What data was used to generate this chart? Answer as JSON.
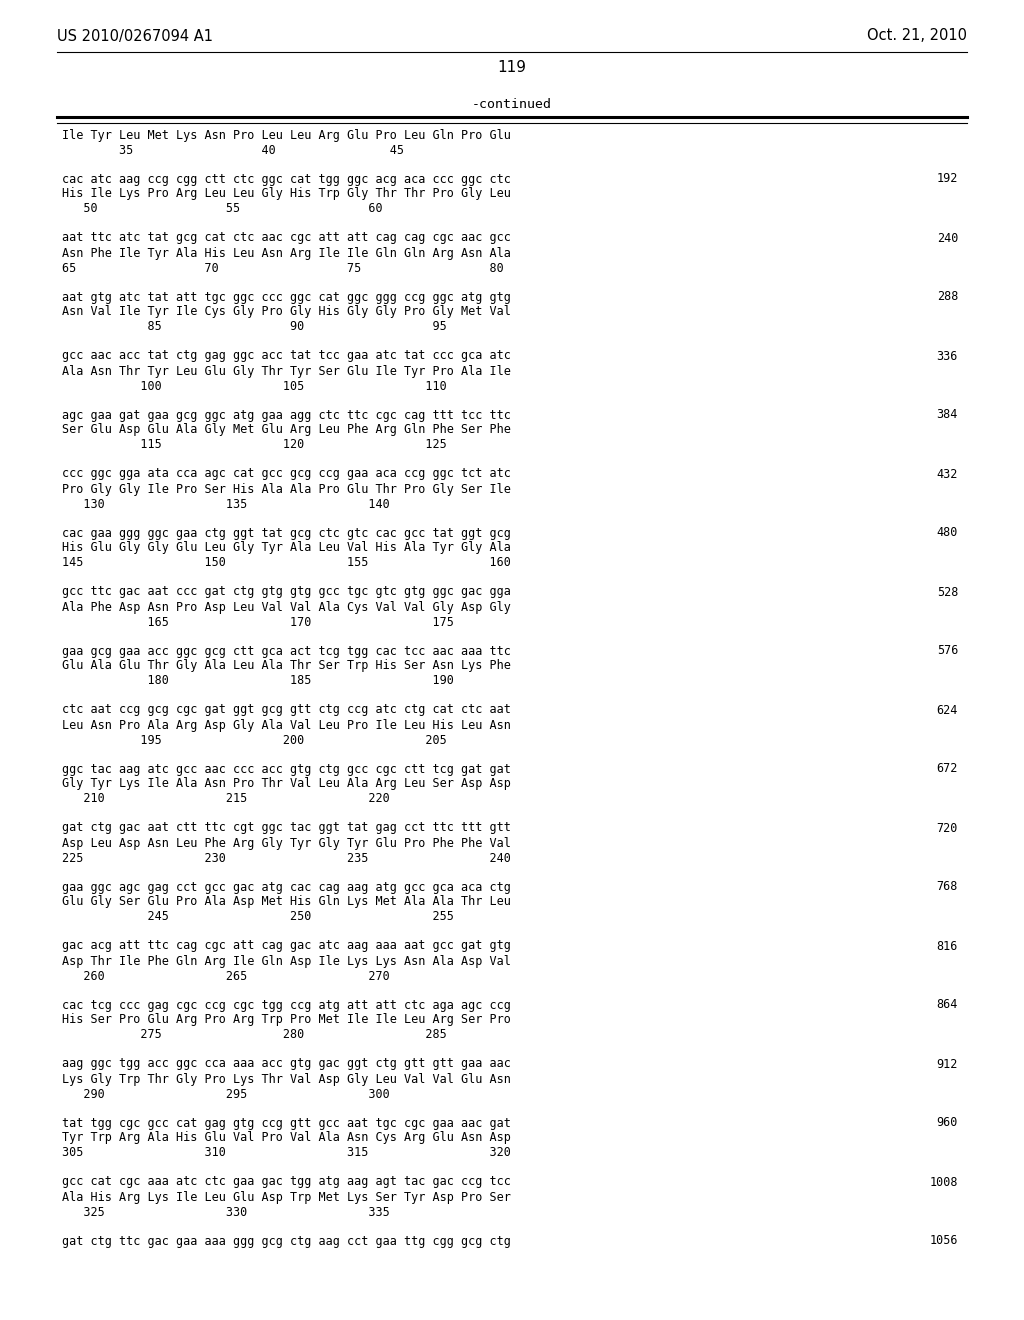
{
  "patent_number": "US 2010/0267094 A1",
  "date": "Oct. 21, 2010",
  "page_number": "119",
  "continued_label": "-continued",
  "background_color": "#ffffff",
  "text_color": "#000000",
  "sequence_blocks": [
    {
      "protein_only": "Ile Tyr Leu Met Lys Asn Pro Leu Leu Arg Glu Pro Leu Gln Pro Glu",
      "num_line": "        35                  40                45",
      "dna_line": "",
      "aa_line": "",
      "number": ""
    },
    {
      "protein_only": "",
      "dna_line": "cac atc aag ccg cgg ctt ctc ggc cat tgg ggc acg aca ccc ggc ctc",
      "aa_line": "His Ile Lys Pro Arg Leu Leu Gly His Trp Gly Thr Thr Pro Gly Leu",
      "num_line": "   50                  55                  60",
      "number": "192"
    },
    {
      "protein_only": "",
      "dna_line": "aat ttc atc tat gcg cat ctc aac cgc att att cag cag cgc aac gcc",
      "aa_line": "Asn Phe Ile Tyr Ala His Leu Asn Arg Ile Ile Gln Gln Arg Asn Ala",
      "num_line": "65                  70                  75                  80",
      "number": "240"
    },
    {
      "protein_only": "",
      "dna_line": "aat gtg atc tat att tgc ggc ccc ggc cat ggc ggg ccg ggc atg gtg",
      "aa_line": "Asn Val Ile Tyr Ile Cys Gly Pro Gly His Gly Gly Pro Gly Met Val",
      "num_line": "            85                  90                  95",
      "number": "288"
    },
    {
      "protein_only": "",
      "dna_line": "gcc aac acc tat ctg gag ggc acc tat tcc gaa atc tat ccc gca atc",
      "aa_line": "Ala Asn Thr Tyr Leu Glu Gly Thr Tyr Ser Glu Ile Tyr Pro Ala Ile",
      "num_line": "           100                 105                 110",
      "number": "336"
    },
    {
      "protein_only": "",
      "dna_line": "agc gaa gat gaa gcg ggc atg gaa agg ctc ttc cgc cag ttt tcc ttc",
      "aa_line": "Ser Glu Asp Glu Ala Gly Met Glu Arg Leu Phe Arg Gln Phe Ser Phe",
      "num_line": "           115                 120                 125",
      "number": "384"
    },
    {
      "protein_only": "",
      "dna_line": "ccc ggc gga ata cca agc cat gcc gcg ccg gaa aca ccg ggc tct atc",
      "aa_line": "Pro Gly Gly Ile Pro Ser His Ala Ala Pro Glu Thr Pro Gly Ser Ile",
      "num_line": "   130                 135                 140",
      "number": "432"
    },
    {
      "protein_only": "",
      "dna_line": "cac gaa ggg ggc gaa ctg ggt tat gcg ctc gtc cac gcc tat ggt gcg",
      "aa_line": "His Glu Gly Gly Glu Leu Gly Tyr Ala Leu Val His Ala Tyr Gly Ala",
      "num_line": "145                 150                 155                 160",
      "number": "480"
    },
    {
      "protein_only": "",
      "dna_line": "gcc ttc gac aat ccc gat ctg gtg gtg gcc tgc gtc gtg ggc gac gga",
      "aa_line": "Ala Phe Asp Asn Pro Asp Leu Val Val Ala Cys Val Val Gly Asp Gly",
      "num_line": "            165                 170                 175",
      "number": "528"
    },
    {
      "protein_only": "",
      "dna_line": "gaa gcg gaa acc ggc gcg ctt gca act tcg tgg cac tcc aac aaa ttc",
      "aa_line": "Glu Ala Glu Thr Gly Ala Leu Ala Thr Ser Trp His Ser Asn Lys Phe",
      "num_line": "            180                 185                 190",
      "number": "576"
    },
    {
      "protein_only": "",
      "dna_line": "ctc aat ccg gcg cgc gat ggt gcg gtt ctg ccg atc ctg cat ctc aat",
      "aa_line": "Leu Asn Pro Ala Arg Asp Gly Ala Val Leu Pro Ile Leu His Leu Asn",
      "num_line": "           195                 200                 205",
      "number": "624"
    },
    {
      "protein_only": "",
      "dna_line": "ggc tac aag atc gcc aac ccc acc gtg ctg gcc cgc ctt tcg gat gat",
      "aa_line": "Gly Tyr Lys Ile Ala Asn Pro Thr Val Leu Ala Arg Leu Ser Asp Asp",
      "num_line": "   210                 215                 220",
      "number": "672"
    },
    {
      "protein_only": "",
      "dna_line": "gat ctg gac aat ctt ttc cgt ggc tac ggt tat gag cct ttc ttt gtt",
      "aa_line": "Asp Leu Asp Asn Leu Phe Arg Gly Tyr Gly Tyr Glu Pro Phe Phe Val",
      "num_line": "225                 230                 235                 240",
      "number": "720"
    },
    {
      "protein_only": "",
      "dna_line": "gaa ggc agc gag cct gcc gac atg cac cag aag atg gcc gca aca ctg",
      "aa_line": "Glu Gly Ser Glu Pro Ala Asp Met His Gln Lys Met Ala Ala Thr Leu",
      "num_line": "            245                 250                 255",
      "number": "768"
    },
    {
      "protein_only": "",
      "dna_line": "gac acg att ttc cag cgc att cag gac atc aag aaa aat gcc gat gtg",
      "aa_line": "Asp Thr Ile Phe Gln Arg Ile Gln Asp Ile Lys Lys Asn Ala Asp Val",
      "num_line": "   260                 265                 270",
      "number": "816"
    },
    {
      "protein_only": "",
      "dna_line": "cac tcg ccc gag cgc ccg cgc tgg ccg atg att att ctc aga agc ccg",
      "aa_line": "His Ser Pro Glu Arg Pro Arg Trp Pro Met Ile Ile Leu Arg Ser Pro",
      "num_line": "           275                 280                 285",
      "number": "864"
    },
    {
      "protein_only": "",
      "dna_line": "aag ggc tgg acc ggc cca aaa acc gtg gac ggt ctg gtt gtt gaa aac",
      "aa_line": "Lys Gly Trp Thr Gly Pro Lys Thr Val Asp Gly Leu Val Val Glu Asn",
      "num_line": "   290                 295                 300",
      "number": "912"
    },
    {
      "protein_only": "",
      "dna_line": "tat tgg cgc gcc cat gag gtg ccg gtt gcc aat tgc cgc gaa aac gat",
      "aa_line": "Tyr Trp Arg Ala His Glu Val Pro Val Ala Asn Cys Arg Glu Asn Asp",
      "num_line": "305                 310                 315                 320",
      "number": "960"
    },
    {
      "protein_only": "",
      "dna_line": "gcc cat cgc aaa atc ctc gaa gac tgg atg aag agt tac gac ccg tcc",
      "aa_line": "Ala His Arg Lys Ile Leu Glu Asp Trp Met Lys Ser Tyr Asp Pro Ser",
      "num_line": "   325                 330                 335",
      "number": "1008"
    },
    {
      "protein_only": "",
      "dna_line": "gat ctg ttc gac gaa aaa ggg gcg ctg aag cct gaa ttg cgg gcg ctg",
      "aa_line": "",
      "num_line": "",
      "number": "1056"
    }
  ]
}
